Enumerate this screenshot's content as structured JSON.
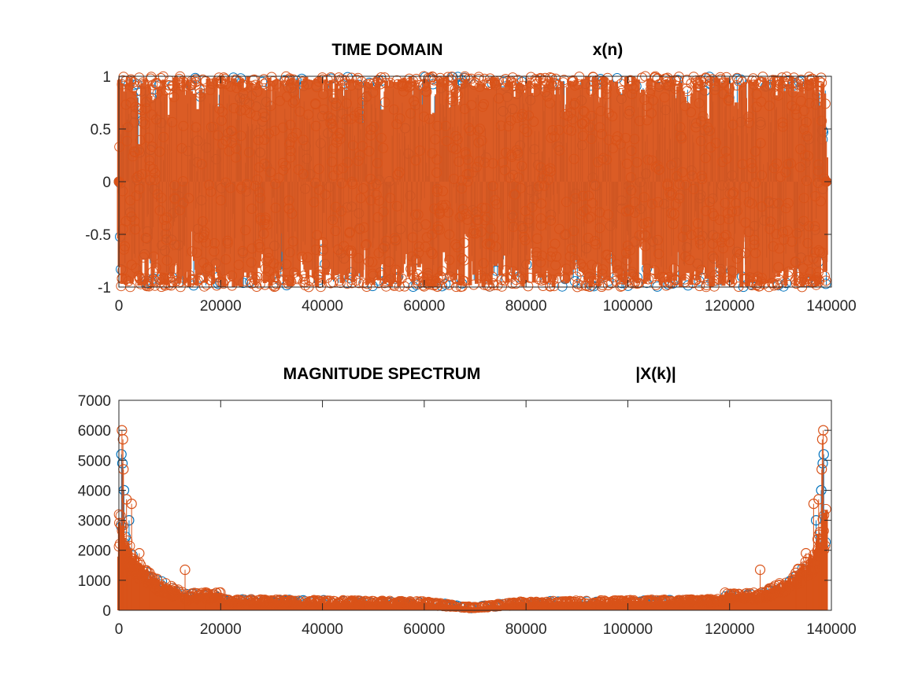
{
  "chart_data": [
    {
      "type": "scatter",
      "title": "TIME DOMAIN",
      "subtitle": "x(n)",
      "xlabel": "",
      "ylabel": "",
      "xlim": [
        0,
        140000
      ],
      "ylim": [
        -1,
        1
      ],
      "x_ticks": [
        "0",
        "20000",
        "40000",
        "60000",
        "80000",
        "100000",
        "120000",
        "140000"
      ],
      "y_ticks": [
        "-1",
        "-0.5",
        "0",
        "0.5",
        "1"
      ],
      "grid": false,
      "marker": "circle",
      "series": [
        {
          "color": "#0072bd",
          "x_range": [
            0,
            139000
          ],
          "envelope": [
            -1,
            1
          ]
        },
        {
          "color": "#d95319",
          "x_range": [
            0,
            139000
          ],
          "envelope": [
            -1,
            1
          ]
        }
      ]
    },
    {
      "type": "scatter",
      "title": "MAGNITUDE SPECTRUM",
      "subtitle": "|X(k)|",
      "xlabel": "",
      "ylabel": "",
      "xlim": [
        0,
        140000
      ],
      "ylim": [
        0,
        7000
      ],
      "x_ticks": [
        "0",
        "20000",
        "40000",
        "60000",
        "80000",
        "100000",
        "120000",
        "140000"
      ],
      "y_ticks": [
        "0",
        "1000",
        "2000",
        "3000",
        "4000",
        "5000",
        "6000",
        "7000"
      ],
      "grid": false,
      "marker": "circle",
      "series": [
        {
          "color": "#0072bd",
          "peaks": [
            {
              "x": 500,
              "y": 5200
            },
            {
              "x": 700,
              "y": 4900
            },
            {
              "x": 1000,
              "y": 4000
            },
            {
              "x": 2000,
              "y": 3000
            },
            {
              "x": 138500,
              "y": 5200
            },
            {
              "x": 138300,
              "y": 4900
            },
            {
              "x": 138000,
              "y": 4000
            },
            {
              "x": 137000,
              "y": 3000
            }
          ]
        },
        {
          "color": "#d95319",
          "peaks": [
            {
              "x": 600,
              "y": 6000
            },
            {
              "x": 800,
              "y": 5700
            },
            {
              "x": 900,
              "y": 4700
            },
            {
              "x": 1500,
              "y": 3700
            },
            {
              "x": 2500,
              "y": 3550
            },
            {
              "x": 4000,
              "y": 1900
            },
            {
              "x": 6000,
              "y": 1250
            },
            {
              "x": 13000,
              "y": 1350
            },
            {
              "x": 17000,
              "y": 550
            },
            {
              "x": 126000,
              "y": 1350
            },
            {
              "x": 133000,
              "y": 1250
            },
            {
              "x": 135000,
              "y": 1900
            },
            {
              "x": 136500,
              "y": 3550
            },
            {
              "x": 137500,
              "y": 3700
            },
            {
              "x": 138100,
              "y": 4700
            },
            {
              "x": 138200,
              "y": 5700
            },
            {
              "x": 138400,
              "y": 6000
            }
          ]
        }
      ]
    }
  ]
}
